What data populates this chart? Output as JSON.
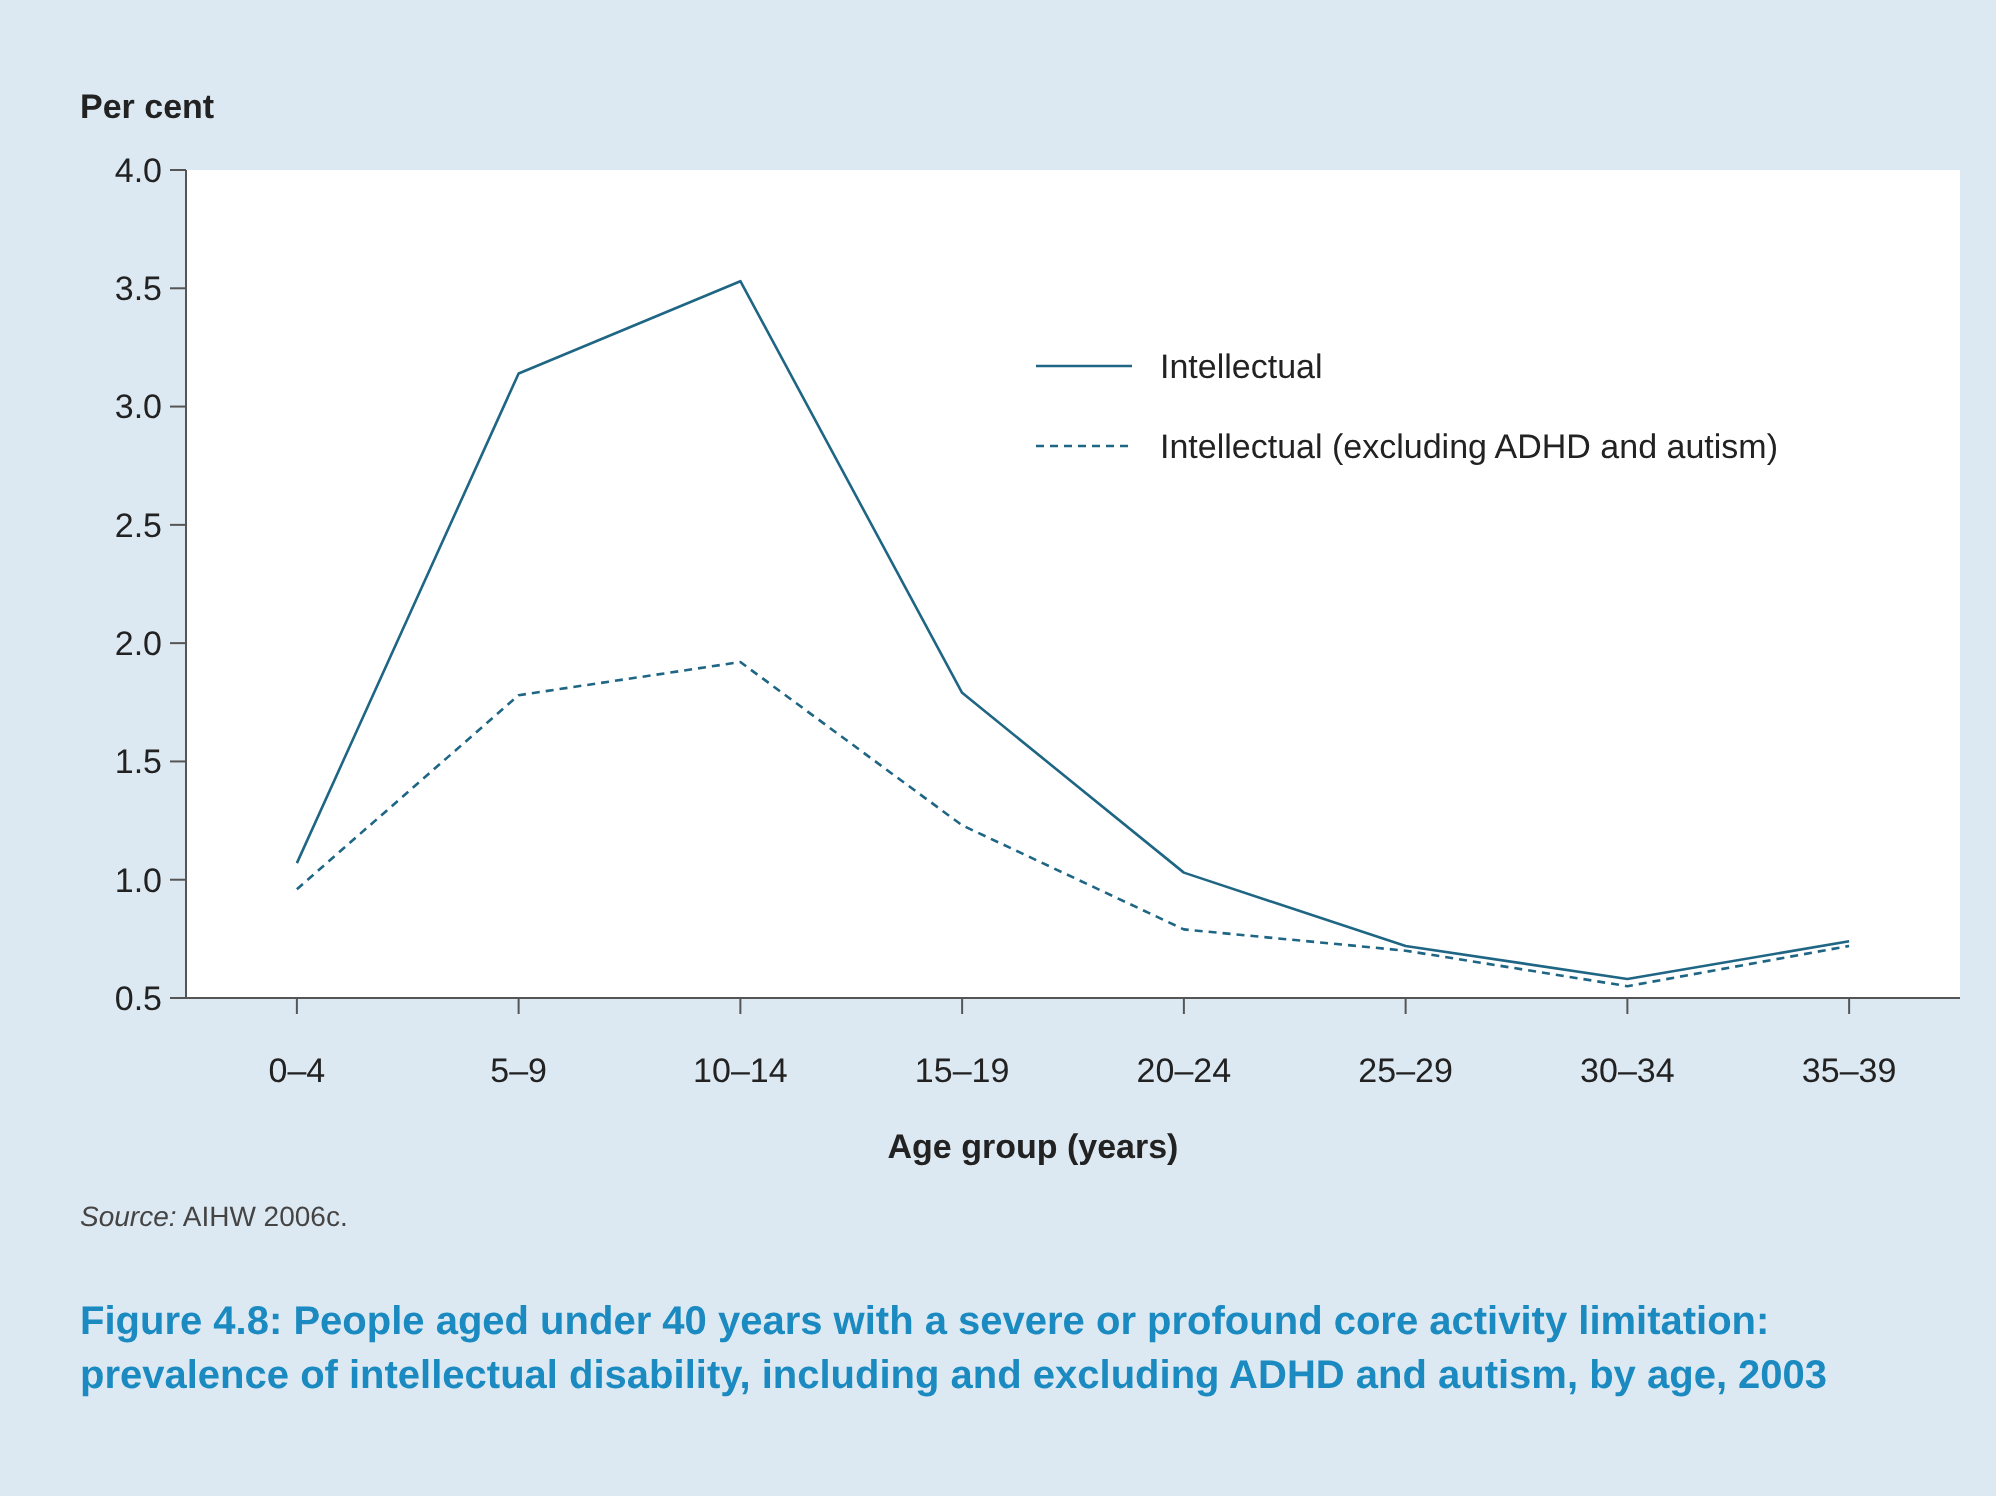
{
  "chart_data": {
    "type": "line",
    "title": "Figure 4.8: People aged under 40 years with a severe or profound core activity limitation: prevalence of intellectual disability, including and excluding ADHD and autism, by age, 2003",
    "xlabel": "Age group (years)",
    "ylabel": "Per cent",
    "annotations": [
      "Source: AIHW 2006c."
    ],
    "categories": [
      "0–4",
      "5–9",
      "10–14",
      "15–19",
      "20–24",
      "25–29",
      "30–34",
      "35–39"
    ],
    "series": [
      {
        "name": "Intellectual",
        "color": "#1f6685",
        "line_style": "solid",
        "values": [
          1.07,
          3.14,
          3.53,
          1.79,
          1.03,
          0.72,
          0.58,
          0.74
        ]
      },
      {
        "name": "Intellectual (excluding ADHD and autism)",
        "color": "#1f6685",
        "line_style": "dashed",
        "values": [
          0.96,
          1.78,
          1.92,
          1.23,
          0.79,
          0.7,
          0.55,
          0.72
        ]
      }
    ],
    "ylim": [
      0.5,
      4.0
    ],
    "yticks": [
      {
        "value": 0.5,
        "label": "0.5"
      },
      {
        "value": 1,
        "label": "1.0"
      },
      {
        "value": 1.5,
        "label": "1.5"
      },
      {
        "value": 2,
        "label": "2.0"
      },
      {
        "value": 2.5,
        "label": "2.5"
      },
      {
        "value": 3,
        "label": "3.0"
      },
      {
        "value": 3.5,
        "label": "3.5"
      },
      {
        "value": 4,
        "label": "4.0"
      }
    ],
    "grid": false,
    "legend": "top right",
    "marker": "none"
  }
}
